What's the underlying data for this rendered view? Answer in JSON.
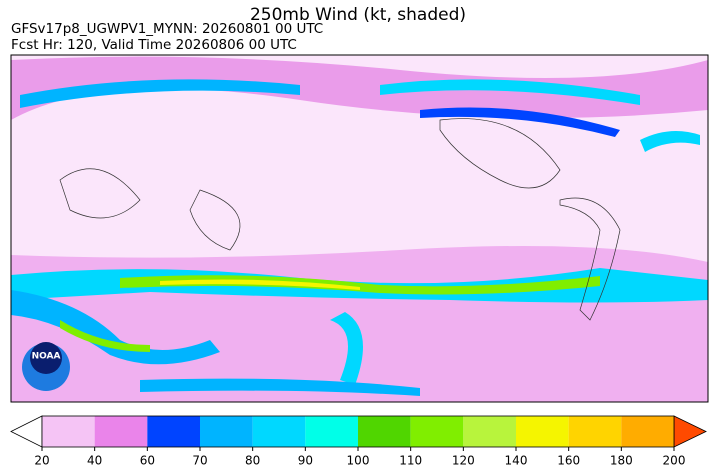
{
  "header": {
    "title": "250mb Wind (kt, shaded)",
    "run": "GFSv17p8_UGWPV1_MYNN: 20260801 00 UTC",
    "valid": "Fcst Hr: 120, Valid Time 20260806 00 UTC"
  },
  "logo": "NOAA",
  "colorbar": {
    "ticks": [
      20,
      40,
      60,
      70,
      80,
      90,
      100,
      110,
      120,
      140,
      160,
      180,
      200
    ],
    "colors": [
      "#f5c4f5",
      "#ea84ea",
      "#0044ff",
      "#00b4ff",
      "#00d8ff",
      "#00ffe8",
      "#50d600",
      "#80ee00",
      "#b8f43c",
      "#f5f500",
      "#ffd400",
      "#ffac00"
    ],
    "under_color": "#ffffff",
    "over_color": "#ff4a00"
  }
}
